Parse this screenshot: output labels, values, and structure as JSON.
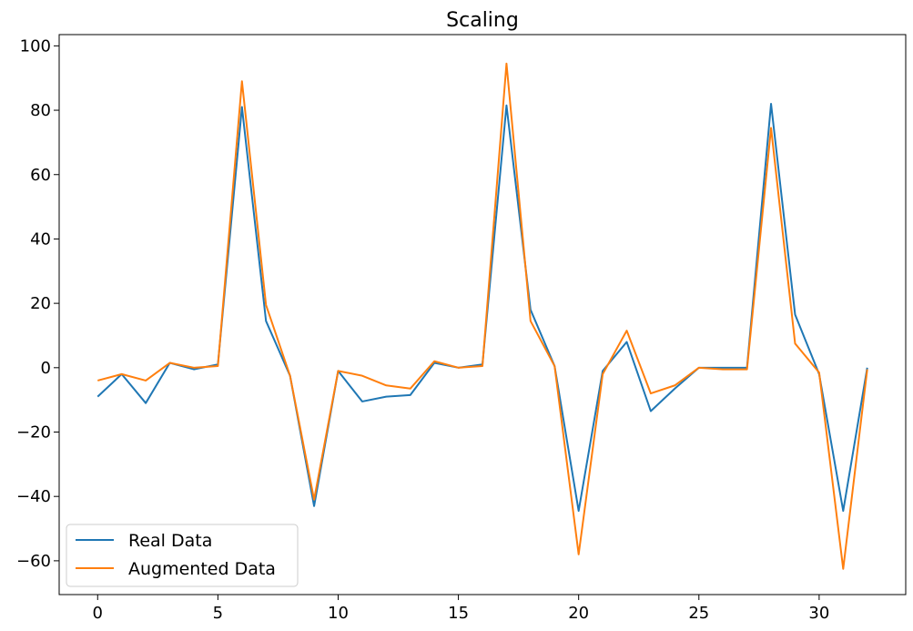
{
  "chart_data": {
    "type": "line",
    "title": "Scaling",
    "xlabel": "",
    "ylabel": "",
    "xlim": [
      -1.6,
      33.6
    ],
    "ylim": [
      -70.5,
      103.5
    ],
    "xticks": [
      0,
      5,
      10,
      15,
      20,
      25,
      30
    ],
    "yticks": [
      -60,
      -40,
      -20,
      0,
      20,
      40,
      60,
      80,
      100
    ],
    "x": [
      0,
      1,
      2,
      3,
      4,
      5,
      6,
      7,
      8,
      9,
      10,
      11,
      12,
      13,
      14,
      15,
      16,
      17,
      18,
      19,
      20,
      21,
      22,
      23,
      24,
      25,
      26,
      27,
      28,
      29,
      30,
      31,
      32
    ],
    "series": [
      {
        "name": "Real Data",
        "color": "#1f77b4",
        "values": [
          -9,
          -2,
          -11,
          1.5,
          -0.5,
          1,
          81,
          14.5,
          -2.5,
          -43,
          -1,
          -10.5,
          -9,
          -8.5,
          1.5,
          0,
          1,
          81.5,
          18,
          0.5,
          -44.5,
          -1,
          8,
          -13.5,
          -6.5,
          0,
          0,
          0,
          82,
          16.5,
          -2,
          -44.5,
          0
        ]
      },
      {
        "name": "Augmented Data",
        "color": "#ff7f0e",
        "values": [
          -4,
          -2,
          -4,
          1.5,
          0,
          0.5,
          89,
          19.5,
          -2.5,
          -41,
          -1,
          -2.5,
          -5.5,
          -6.5,
          2,
          0,
          0.5,
          94.5,
          14.5,
          0.5,
          -58,
          -2,
          11.5,
          -8,
          -5.5,
          0,
          -0.5,
          -0.5,
          74.5,
          7.5,
          -1.5,
          -62.5,
          -0.5
        ]
      }
    ],
    "grid": false,
    "legend_position": "lower-left"
  }
}
